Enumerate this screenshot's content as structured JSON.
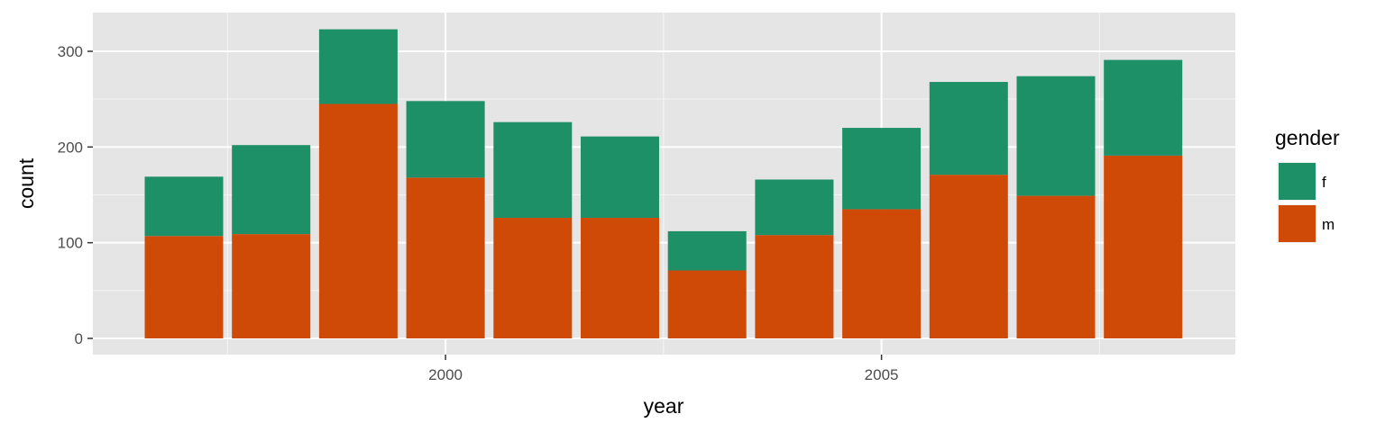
{
  "chart_data": {
    "type": "bar",
    "stacked": true,
    "x": [
      1997,
      1998,
      1999,
      2000,
      2001,
      2002,
      2003,
      2004,
      2005,
      2006,
      2007,
      2008
    ],
    "series": [
      {
        "name": "m",
        "color": "#D04A07",
        "values": [
          107,
          109,
          245,
          168,
          126,
          126,
          71,
          108,
          135,
          171,
          149,
          191
        ]
      },
      {
        "name": "f",
        "color": "#1D9068",
        "values": [
          62,
          93,
          78,
          80,
          100,
          85,
          41,
          58,
          85,
          97,
          125,
          100
        ]
      }
    ],
    "xlabel": "year",
    "ylabel": "count",
    "x_ticks": [
      2000,
      2005
    ],
    "y_ticks": [
      0,
      100,
      200,
      300
    ],
    "ylim": [
      0,
      340
    ],
    "legend": {
      "title": "gender",
      "placement": "right",
      "order": [
        "f",
        "m"
      ]
    },
    "grid": true,
    "panel_background": "#E5E5E5"
  }
}
